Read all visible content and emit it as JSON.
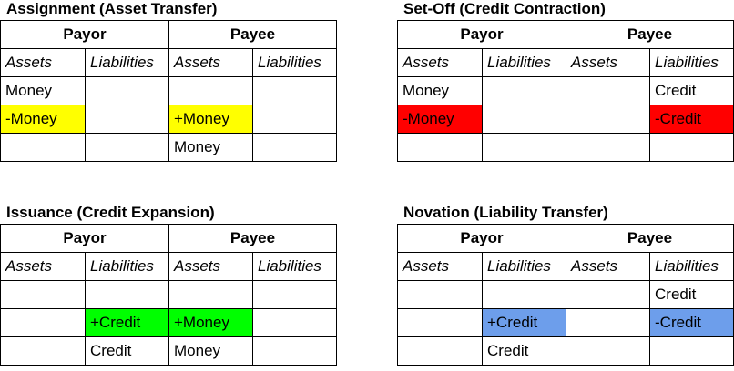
{
  "colors": {
    "yellow": "#ffff00",
    "red": "#ff0000",
    "green": "#00ff00",
    "blue": "#6d9eeb"
  },
  "panels": [
    {
      "title": "Assignment (Asset Transfer)",
      "parties": [
        "Payor",
        "Payee"
      ],
      "columns": [
        "Assets",
        "Liabilities",
        "Assets",
        "Liabilities"
      ],
      "rows": [
        [
          {
            "text": "Money"
          },
          {
            "text": ""
          },
          {
            "text": ""
          },
          {
            "text": ""
          }
        ],
        [
          {
            "text": "-Money",
            "color": "yellow"
          },
          {
            "text": ""
          },
          {
            "text": "+Money",
            "color": "yellow"
          },
          {
            "text": ""
          }
        ],
        [
          {
            "text": ""
          },
          {
            "text": ""
          },
          {
            "text": "Money"
          },
          {
            "text": ""
          }
        ]
      ]
    },
    {
      "title": "Set-Off (Credit Contraction)",
      "parties": [
        "Payor",
        "Payee"
      ],
      "columns": [
        "Assets",
        "Liabilities",
        "Assets",
        "Liabilities"
      ],
      "rows": [
        [
          {
            "text": "Money"
          },
          {
            "text": ""
          },
          {
            "text": ""
          },
          {
            "text": "Credit"
          }
        ],
        [
          {
            "text": "-Money",
            "color": "red"
          },
          {
            "text": ""
          },
          {
            "text": ""
          },
          {
            "text": "-Credit",
            "color": "red"
          }
        ],
        [
          {
            "text": ""
          },
          {
            "text": ""
          },
          {
            "text": ""
          },
          {
            "text": ""
          }
        ]
      ]
    },
    {
      "title": "Issuance (Credit Expansion)",
      "parties": [
        "Payor",
        "Payee"
      ],
      "columns": [
        "Assets",
        "Liabilities",
        "Assets",
        "Liabilities"
      ],
      "rows": [
        [
          {
            "text": ""
          },
          {
            "text": ""
          },
          {
            "text": ""
          },
          {
            "text": ""
          }
        ],
        [
          {
            "text": ""
          },
          {
            "text": "+Credit",
            "color": "green"
          },
          {
            "text": "+Money",
            "color": "green"
          },
          {
            "text": ""
          }
        ],
        [
          {
            "text": ""
          },
          {
            "text": "Credit"
          },
          {
            "text": "Money"
          },
          {
            "text": ""
          }
        ]
      ]
    },
    {
      "title": "Novation (Liability Transfer)",
      "parties": [
        "Payor",
        "Payee"
      ],
      "columns": [
        "Assets",
        "Liabilities",
        "Assets",
        "Liabilities"
      ],
      "rows": [
        [
          {
            "text": ""
          },
          {
            "text": ""
          },
          {
            "text": ""
          },
          {
            "text": "Credit"
          }
        ],
        [
          {
            "text": ""
          },
          {
            "text": "+Credit",
            "color": "blue"
          },
          {
            "text": ""
          },
          {
            "text": "-Credit",
            "color": "blue"
          }
        ],
        [
          {
            "text": ""
          },
          {
            "text": "Credit"
          },
          {
            "text": ""
          },
          {
            "text": ""
          }
        ]
      ]
    }
  ]
}
